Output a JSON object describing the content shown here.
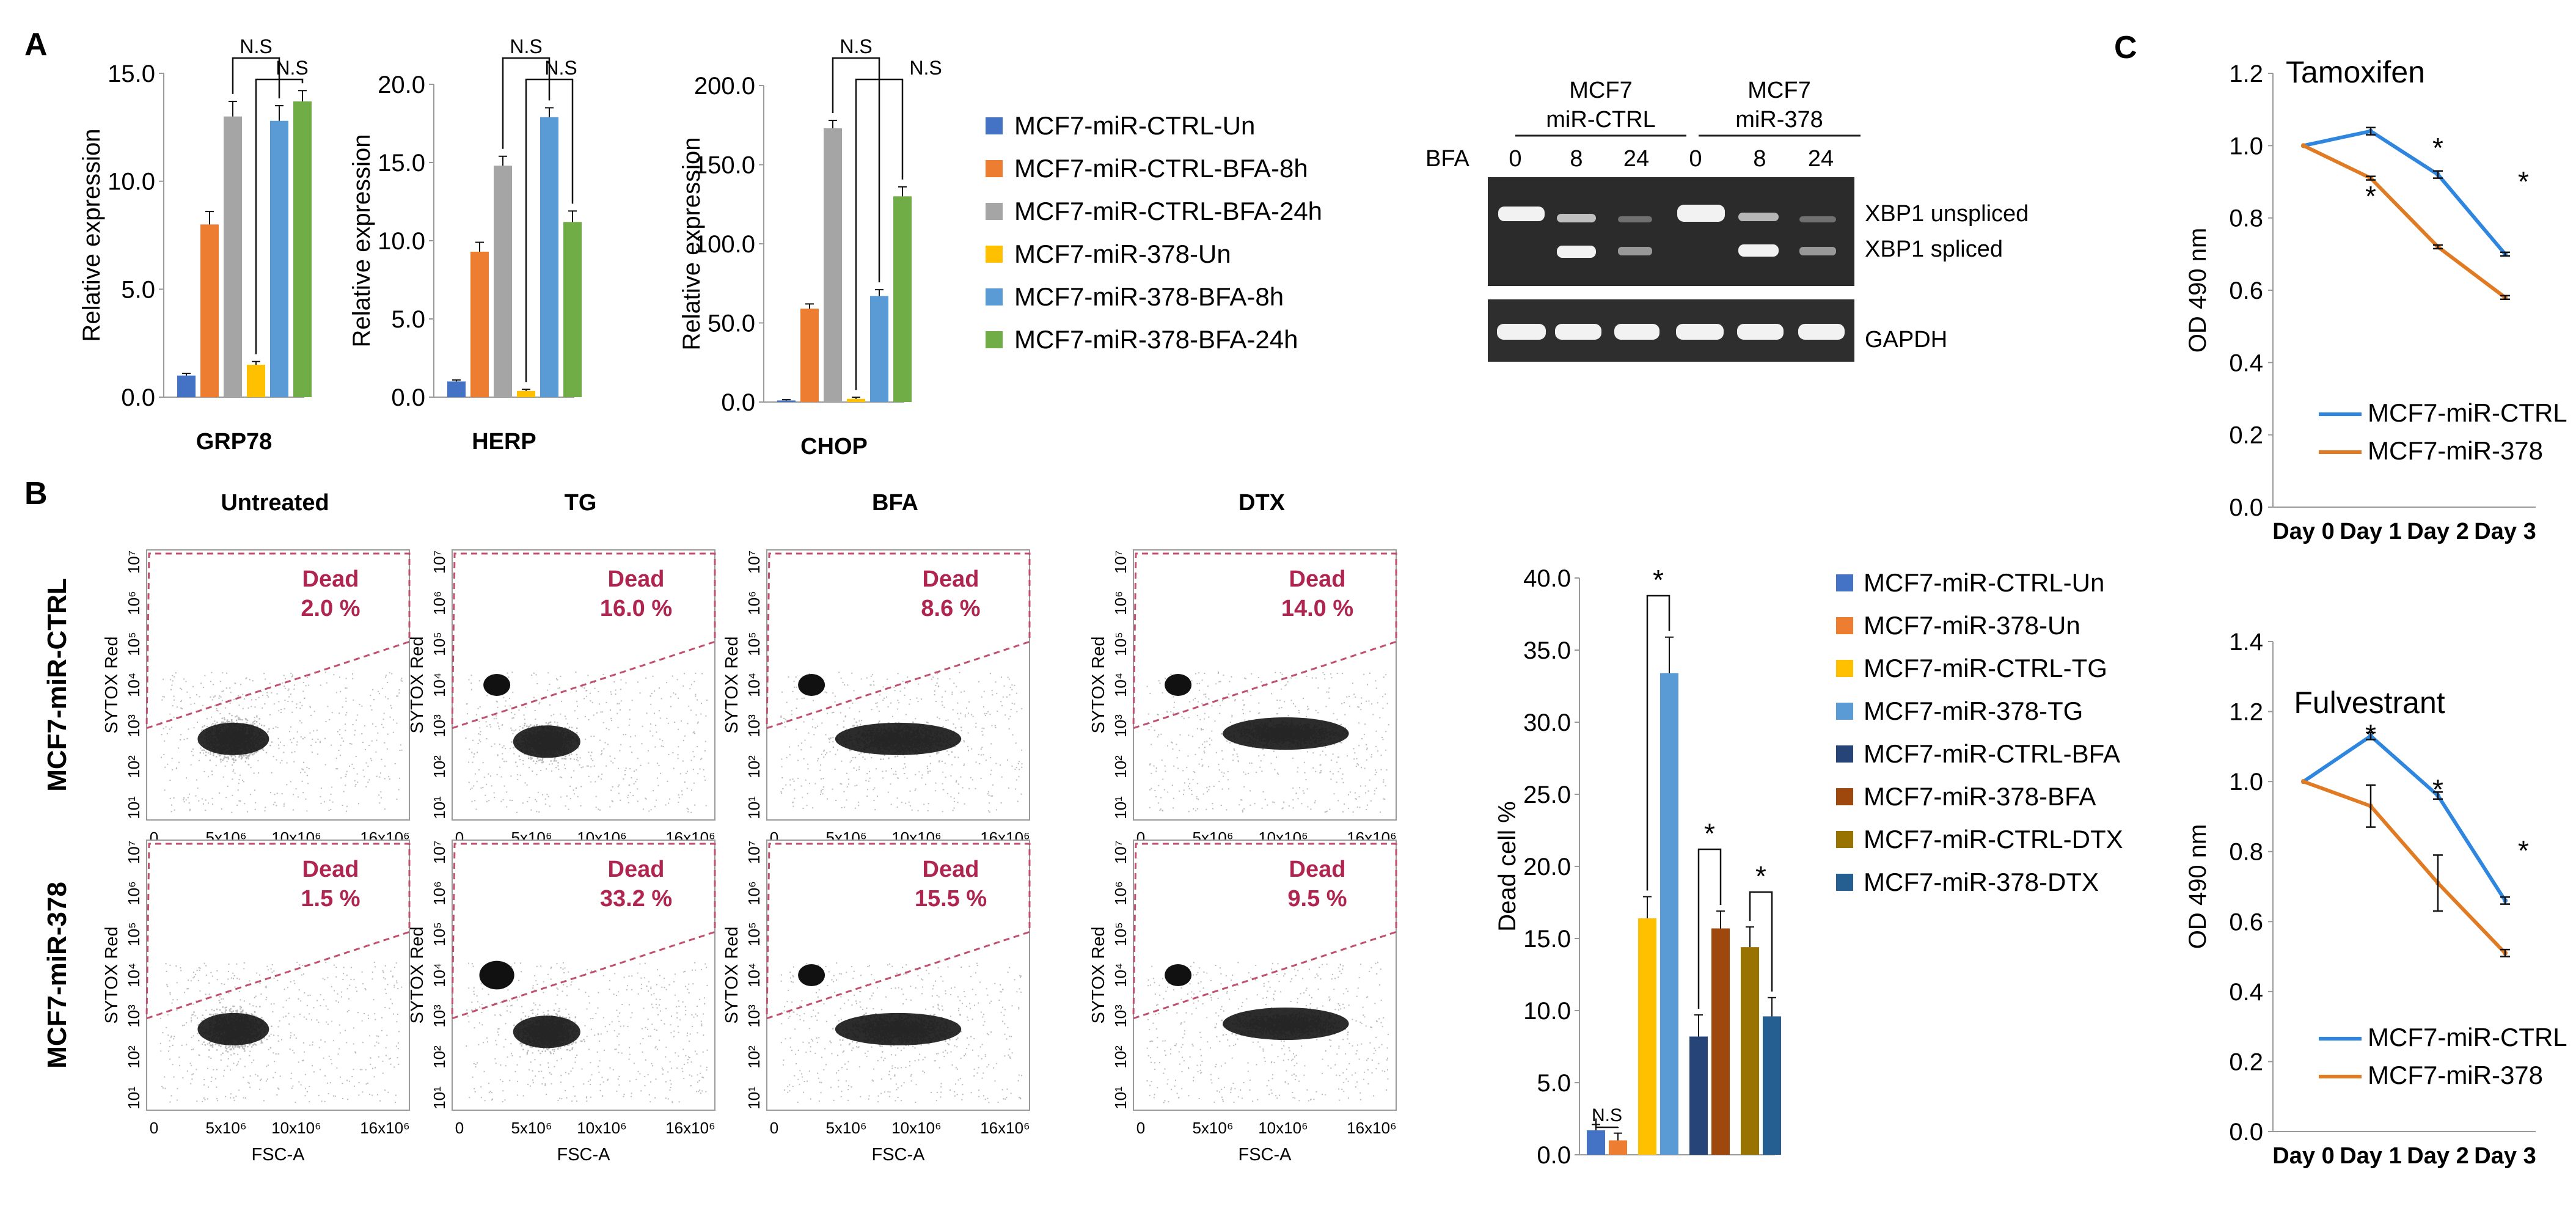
{
  "colors": {
    "ctrl_un": "#4472c4",
    "ctrl_8h": "#ed7d31",
    "ctrl_24h": "#a5a5a5",
    "m378_un": "#ffc000",
    "m378_8h": "#5b9bd5",
    "m378_24h": "#70ad47",
    "b_ctrl_bfa": "#264478",
    "b_378_bfa": "#9e480e",
    "b_ctrl_dtx": "#997300",
    "b_378_dtx": "#255e91",
    "line_ctrl": "#2e86de",
    "line_378": "#e07b24",
    "gate": "#c0506e",
    "gate_text": "#b0254f"
  },
  "panels": {
    "a": "A",
    "b": "B",
    "c": "C"
  },
  "chart_data": [
    {
      "id": "grp78",
      "type": "bar",
      "title": "GRP78",
      "ylabel": "Relative expression",
      "ylim": [
        0,
        15
      ],
      "yticks": [
        "0.0",
        "5.0",
        "10.0",
        "15.0"
      ],
      "categories": [
        "MCF7-miR-CTRL-Un",
        "MCF7-miR-CTRL-BFA-8h",
        "MCF7-miR-CTRL-BFA-24h",
        "MCF7-miR-378-Un",
        "MCF7-miR-378-BFA-8h",
        "MCF7-miR-378-BFA-24h"
      ],
      "values": [
        1.0,
        8.0,
        13.0,
        1.5,
        12.8,
        13.7
      ],
      "errors": [
        0.1,
        0.6,
        0.7,
        0.15,
        0.7,
        0.5
      ],
      "annotations": [
        "N.S",
        "N.S"
      ]
    },
    {
      "id": "herp",
      "type": "bar",
      "title": "HERP",
      "ylabel": "Relative expression",
      "ylim": [
        0,
        20
      ],
      "yticks": [
        "0.0",
        "5.0",
        "10.0",
        "15.0",
        "20.0"
      ],
      "categories": [
        "MCF7-miR-CTRL-Un",
        "MCF7-miR-CTRL-BFA-8h",
        "MCF7-miR-CTRL-BFA-24h",
        "MCF7-miR-378-Un",
        "MCF7-miR-378-BFA-8h",
        "MCF7-miR-378-BFA-24h"
      ],
      "values": [
        1.0,
        9.3,
        14.8,
        0.4,
        17.9,
        11.2
      ],
      "errors": [
        0.1,
        0.6,
        0.6,
        0.1,
        0.6,
        0.7
      ],
      "annotations": [
        "N.S",
        "N.S"
      ]
    },
    {
      "id": "chop",
      "type": "bar",
      "title": "CHOP",
      "ylabel": "Relative expression",
      "ylim": [
        0,
        200
      ],
      "yticks": [
        "0.0",
        "50.0",
        "100.0",
        "150.0",
        "200.0"
      ],
      "categories": [
        "MCF7-miR-CTRL-Un",
        "MCF7-miR-CTRL-BFA-8h",
        "MCF7-miR-CTRL-BFA-24h",
        "MCF7-miR-378-Un",
        "MCF7-miR-378-BFA-8h",
        "MCF7-miR-378-BFA-24h"
      ],
      "values": [
        1.0,
        59.0,
        173.0,
        2.0,
        67.0,
        130.0
      ],
      "errors": [
        0.5,
        3.0,
        5.0,
        1.0,
        4.0,
        6.0
      ],
      "annotations": [
        "N.S",
        "N.S"
      ]
    },
    {
      "id": "deadcell",
      "type": "bar",
      "ylabel": "Dead cell %",
      "ylim": [
        0,
        40
      ],
      "yticks": [
        "0.0",
        "5.0",
        "10.0",
        "15.0",
        "20.0",
        "25.0",
        "30.0",
        "35.0",
        "40.0"
      ],
      "categories": [
        "MCF7-miR-CTRL-Un",
        "MCF7-miR-378-Un",
        "MCF7-miR-CTRL-TG",
        "MCF7-miR-378-TG",
        "MCF7-miR-CTRL-BFA",
        "MCF7-miR-378-BFA",
        "MCF7-miR-CTRL-DTX",
        "MCF7-miR-378-DTX"
      ],
      "values": [
        1.7,
        1.0,
        16.4,
        33.4,
        8.2,
        15.7,
        14.4,
        9.6
      ],
      "errors": [
        0.4,
        0.5,
        1.5,
        2.5,
        1.5,
        1.2,
        1.4,
        1.3
      ],
      "annotations": [
        "N.S",
        "*",
        "*",
        "*"
      ]
    },
    {
      "id": "tamoxifen",
      "type": "line",
      "title": "Tamoxifen",
      "ylabel": "OD 490 nm",
      "ylim": [
        0,
        1.2
      ],
      "yticks": [
        "0.0",
        "0.2",
        "0.4",
        "0.6",
        "0.8",
        "1.0",
        "1.2"
      ],
      "x": [
        "Day 0",
        "Day 1",
        "Day 2",
        "Day 3"
      ],
      "series": [
        {
          "name": "MCF7-miR-CTRL",
          "values": [
            1.0,
            1.04,
            0.92,
            0.7
          ],
          "errors": [
            0,
            0.01,
            0.01,
            0.005
          ]
        },
        {
          "name": "MCF7-miR-378",
          "values": [
            1.0,
            0.91,
            0.72,
            0.58
          ],
          "errors": [
            0,
            0.005,
            0.005,
            0.005
          ]
        }
      ],
      "annotations": [
        "*",
        "*",
        "*"
      ]
    },
    {
      "id": "fulvestrant",
      "type": "line",
      "title": "Fulvestrant",
      "ylabel": "OD 490 nm",
      "ylim": [
        0,
        1.4
      ],
      "yticks": [
        "0.0",
        "0.2",
        "0.4",
        "0.6",
        "0.8",
        "1.0",
        "1.2",
        "1.4"
      ],
      "x": [
        "Day 0",
        "Day 1",
        "Day 2",
        "Day 3"
      ],
      "series": [
        {
          "name": "MCF7-miR-CTRL",
          "values": [
            1.0,
            1.13,
            0.96,
            0.66
          ],
          "errors": [
            0,
            0.01,
            0.01,
            0.01
          ]
        },
        {
          "name": "MCF7-miR-378",
          "values": [
            1.0,
            0.93,
            0.71,
            0.51
          ],
          "errors": [
            0,
            0.06,
            0.08,
            0.01
          ]
        }
      ],
      "annotations": [
        "*",
        "*",
        "*"
      ]
    }
  ],
  "legend_a": [
    "MCF7-miR-CTRL-Un",
    "MCF7-miR-CTRL-BFA-8h",
    "MCF7-miR-CTRL-BFA-24h",
    "MCF7-miR-378-Un",
    "MCF7-miR-378-BFA-8h",
    "MCF7-miR-378-BFA-24h"
  ],
  "legend_b": [
    "MCF7-miR-CTRL-Un",
    "MCF7-miR-378-Un",
    "MCF7-miR-CTRL-TG",
    "MCF7-miR-378-TG",
    "MCF7-miR-CTRL-BFA",
    "MCF7-miR-378-BFA",
    "MCF7-miR-CTRL-DTX",
    "MCF7-miR-378-DTX"
  ],
  "gel": {
    "group1": [
      "MCF7",
      "miR-CTRL"
    ],
    "group2": [
      "MCF7",
      "miR-378"
    ],
    "bfa_label": "BFA",
    "lanes": [
      "0",
      "8",
      "24",
      "0",
      "8",
      "24"
    ],
    "bands": [
      "XBP1 unspliced",
      "XBP1 spliced",
      "GAPDH"
    ]
  },
  "flow": {
    "columns": [
      "Untreated",
      "TG",
      "BFA",
      "DTX"
    ],
    "rows": [
      "MCF7-miR-CTRL",
      "MCF7-miR-378"
    ],
    "gate_label": "Dead",
    "dead_ctrl": [
      "2.0 %",
      "16.0 %",
      "8.6 %",
      "14.0 %"
    ],
    "dead_378": [
      "1.5 %",
      "33.2 %",
      "15.5 %",
      "9.5 %"
    ],
    "ylabel": "SYTOX Red",
    "xlabel": "FSC-A",
    "xticks": [
      "0",
      "5x10⁶",
      "10x10⁶",
      "16x10⁶"
    ],
    "yticks": [
      "10¹",
      "10²",
      "10³",
      "10⁴",
      "10⁵",
      "10⁶",
      "10⁷"
    ]
  }
}
